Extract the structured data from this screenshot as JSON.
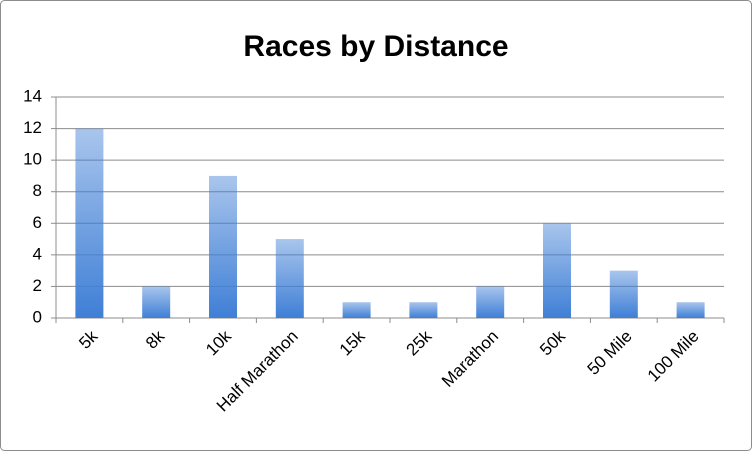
{
  "chart_data": {
    "type": "bar",
    "title": "Races by Distance",
    "categories": [
      "5k",
      "8k",
      "10k",
      "Half Marathon",
      "15k",
      "25k",
      "Marathon",
      "50k",
      "50 Mile",
      "100 Mile"
    ],
    "values": [
      12,
      2,
      9,
      5,
      1,
      1,
      2,
      6,
      3,
      1
    ],
    "color": "#3f7fd6",
    "ylim": [
      0,
      14
    ],
    "yticks": [
      0,
      2,
      4,
      6,
      8,
      10,
      12,
      14
    ],
    "grid": true
  }
}
